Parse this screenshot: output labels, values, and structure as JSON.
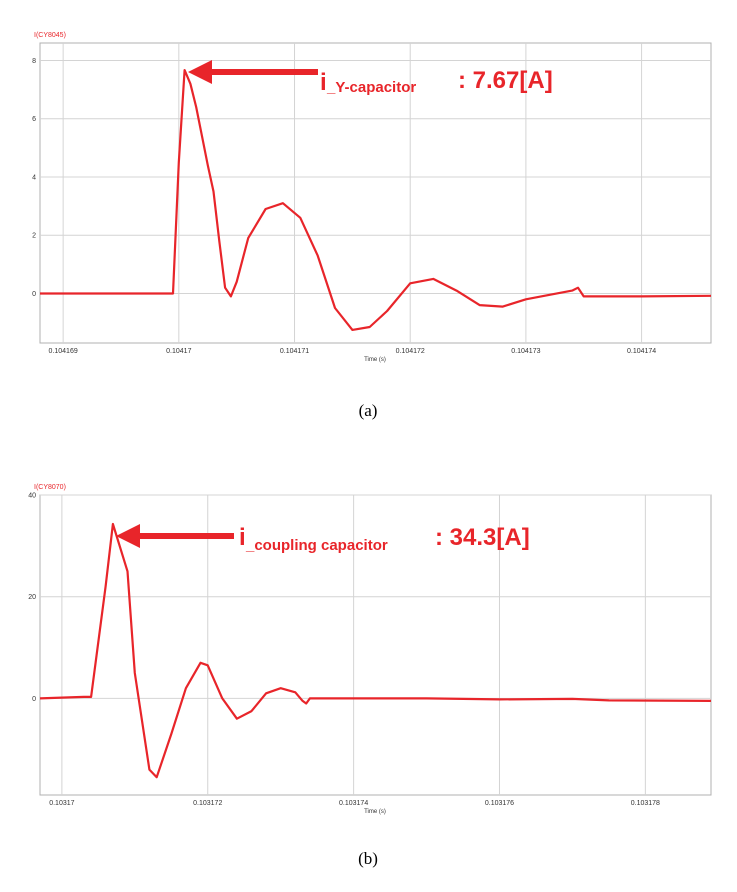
{
  "chart_data": [
    {
      "type": "line",
      "probe_label": "I(CY8045)",
      "xlabel": "Time (s)",
      "caption": "(a)",
      "x_ticks": [
        "0.104169",
        "0.10417",
        "0.104171",
        "0.104172",
        "0.104173",
        "0.104174"
      ],
      "x_tick_values": [
        0.104169,
        0.10417,
        0.104171,
        0.104172,
        0.104173,
        0.104174
      ],
      "y_ticks": [
        "0",
        "2",
        "4",
        "6",
        "8"
      ],
      "y_tick_values": [
        0,
        2,
        4,
        6,
        8
      ],
      "xlim": [
        0.1041688,
        0.1041746
      ],
      "ylim": [
        -1.7,
        8.6
      ],
      "grid": true,
      "line_color": "#e8252a",
      "annotation": {
        "prefix": "i",
        "subscript": "_Y-capacitor",
        "value": ": 7.67[A]"
      },
      "series": [
        {
          "x": [
            0.1041688,
            0.104169,
            0.1041695,
            0.10416995,
            0.10417,
            0.10417005,
            0.1041701,
            0.10417015,
            0.1041702,
            0.10417025,
            0.1041703,
            0.10417035,
            0.1041704,
            0.10417045,
            0.1041705,
            0.1041706,
            0.10417075,
            0.1041709,
            0.10417105,
            0.1041712,
            0.10417135,
            0.1041715,
            0.10417165,
            0.1041718,
            0.104172,
            0.1041722,
            0.1041724,
            0.1041726,
            0.1041728,
            0.104173,
            0.1041732,
            0.1041734,
            0.10417345,
            0.1041735,
            0.104174,
            0.1041746
          ],
          "y": [
            0,
            0,
            0,
            0,
            4.5,
            7.67,
            7.2,
            6.4,
            5.4,
            4.4,
            3.5,
            1.8,
            0.2,
            -0.1,
            0.4,
            1.9,
            2.9,
            3.1,
            2.6,
            1.3,
            -0.5,
            -1.25,
            -1.15,
            -0.6,
            0.35,
            0.5,
            0.1,
            -0.4,
            -0.45,
            -0.2,
            -0.05,
            0.1,
            0.2,
            -0.1,
            -0.1,
            -0.08
          ]
        }
      ]
    },
    {
      "type": "line",
      "probe_label": "I(CY8070)",
      "xlabel": "Time (s)",
      "caption": "(b)",
      "x_ticks": [
        "0.10317",
        "0.103172",
        "0.103174",
        "0.103176",
        "0.103178"
      ],
      "x_tick_values": [
        0.10317,
        0.103172,
        0.103174,
        0.103176,
        0.103178
      ],
      "y_ticks": [
        "0",
        "20",
        "40"
      ],
      "y_tick_values": [
        0,
        20,
        40
      ],
      "xlim": [
        0.1031697,
        0.1031789
      ],
      "ylim": [
        -19,
        40
      ],
      "grid": true,
      "line_color": "#e8252a",
      "annotation": {
        "prefix": "i",
        "subscript": "_coupling capacitor",
        "value": ": 34.3[A]"
      },
      "series": [
        {
          "x": [
            0.1031697,
            0.1031703,
            0.1031704,
            0.1031706,
            0.1031707,
            0.1031709,
            0.103171,
            0.1031712,
            0.1031713,
            0.1031715,
            0.1031717,
            0.1031719,
            0.103172,
            0.1031722,
            0.1031724,
            0.1031726,
            0.1031728,
            0.103173,
            0.1031732,
            0.1031733,
            0.10317335,
            0.1031734,
            0.1031745,
            0.103175,
            0.103176,
            0.103177,
            0.1031775,
            0.1031789
          ],
          "y": [
            0,
            0.3,
            0.3,
            22,
            34.3,
            25,
            5,
            -14,
            -15.5,
            -7,
            2,
            7,
            6.5,
            0,
            -4,
            -2.5,
            1,
            2,
            1.2,
            -0.5,
            -1,
            0,
            0,
            0,
            -0.2,
            -0.1,
            -0.4,
            -0.5
          ]
        }
      ]
    }
  ]
}
